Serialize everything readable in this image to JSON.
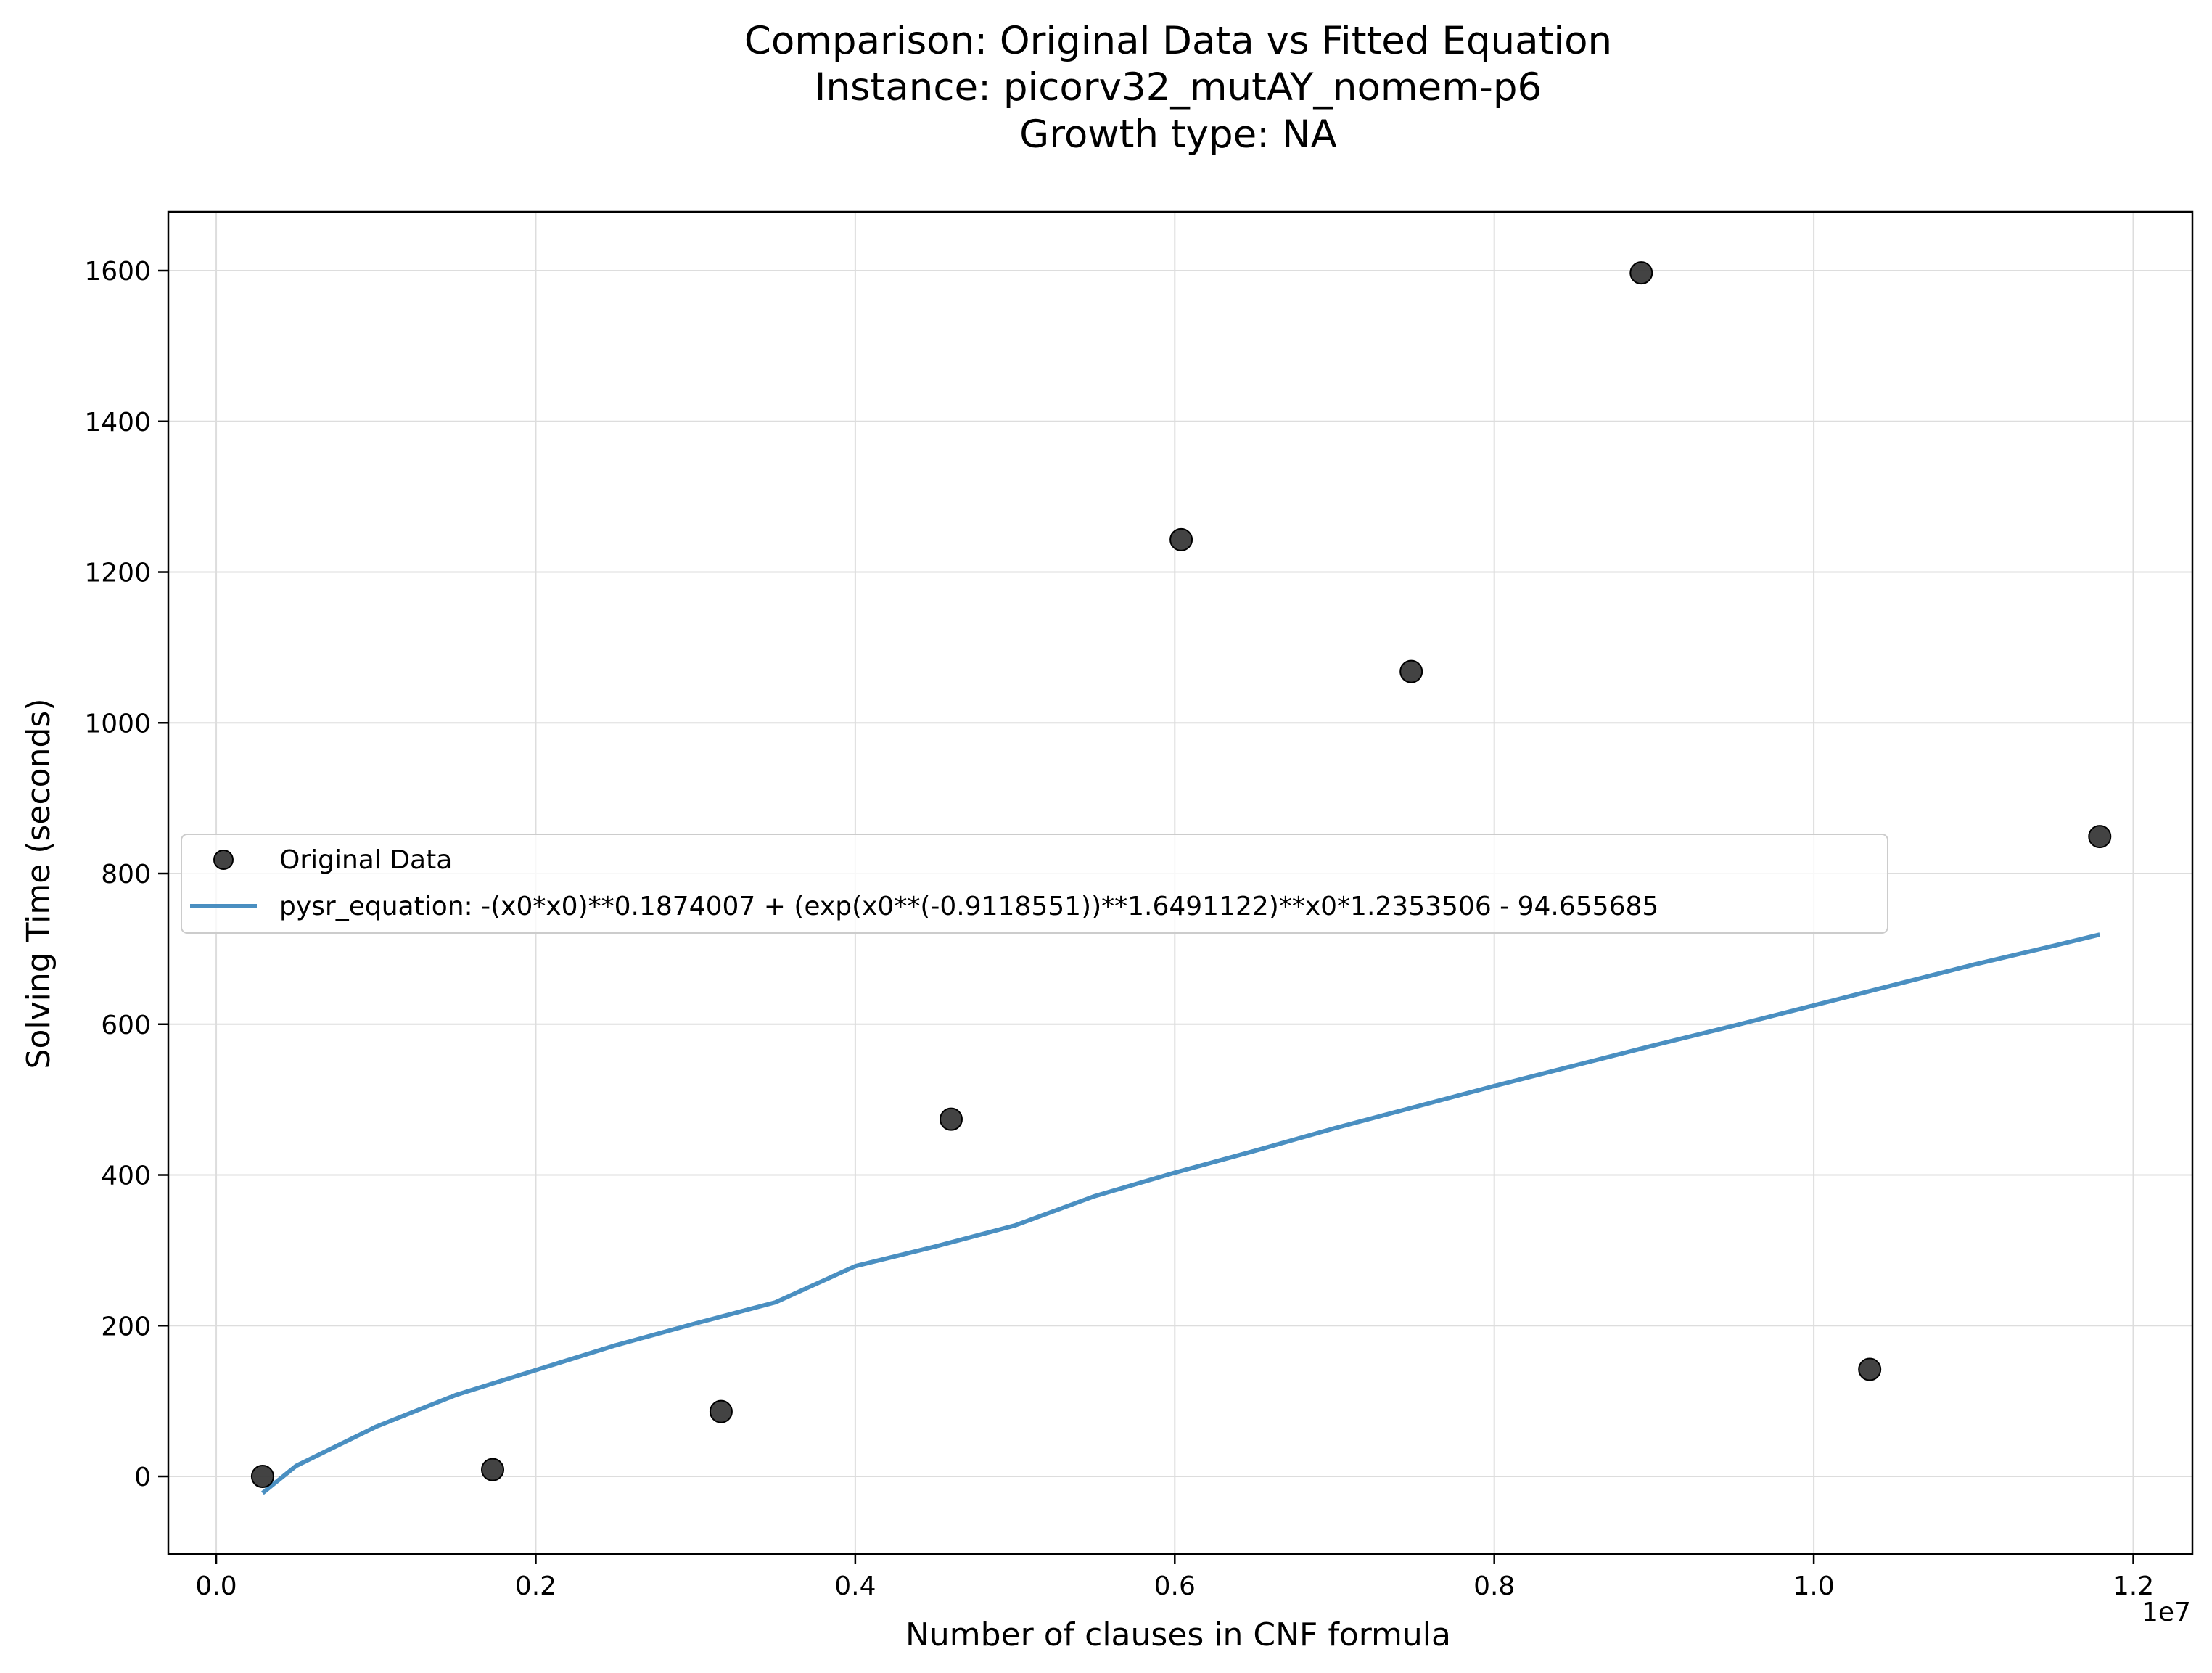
{
  "chart_data": {
    "type": "scatter",
    "title_lines": [
      "Comparison: Original Data vs Fitted Equation",
      "Instance: picorv32_mutAY_nomem-p6",
      "Growth type: NA"
    ],
    "xlabel": "Number of clauses in CNF formula",
    "ylabel": "Solving Time (seconds)",
    "x_offset_label": "1e7",
    "xlim": [
      -0.03,
      1.237
    ],
    "ylim": [
      -103,
      1678
    ],
    "x_ticks": [
      0.0,
      0.2,
      0.4,
      0.6,
      0.8,
      1.0,
      1.2
    ],
    "x_tick_labels": [
      "0.0",
      "0.2",
      "0.4",
      "0.6",
      "0.8",
      "1.0",
      "1.2"
    ],
    "y_ticks": [
      0,
      200,
      400,
      600,
      800,
      1000,
      1200,
      1400,
      1600
    ],
    "y_tick_labels": [
      "0",
      "200",
      "400",
      "600",
      "800",
      "1000",
      "1200",
      "1400",
      "1600"
    ],
    "grid": true,
    "legend_position": "center-left",
    "series": [
      {
        "name": "Original Data",
        "kind": "scatter",
        "color": "#333333",
        "x": [
          0.029,
          0.173,
          0.316,
          0.46,
          0.604,
          0.748,
          0.892,
          1.035,
          1.179
        ],
        "y": [
          0,
          9,
          86,
          474,
          1243,
          1068,
          1597,
          142,
          849
        ]
      },
      {
        "name": "pysr_equation: -(x0*x0)**0.1874007 + (exp(x0**(-0.9118551))**1.6491122)**x0*1.2353506 - 94.655685",
        "kind": "line",
        "color": "#4a8fc1",
        "x": [
          0.029,
          0.05,
          0.1,
          0.15,
          0.2,
          0.25,
          0.3,
          0.35,
          0.4,
          0.45,
          0.5,
          0.55,
          0.6,
          0.65,
          0.7,
          0.75,
          0.8,
          0.85,
          0.9,
          0.95,
          1.0,
          1.05,
          1.1,
          1.15,
          1.179
        ],
        "y": [
          -22,
          14,
          66,
          108,
          141,
          174,
          203,
          231,
          279,
          305,
          333,
          372,
          403,
          432,
          462,
          490,
          518,
          545,
          572,
          598,
          625,
          652,
          679,
          704,
          719
        ]
      }
    ]
  }
}
